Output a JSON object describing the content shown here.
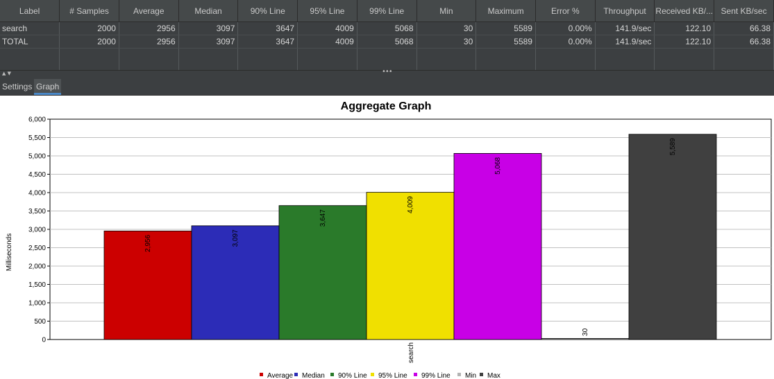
{
  "table": {
    "columns": [
      "Label",
      "# Samples",
      "Average",
      "Median",
      "90% Line",
      "95% Line",
      "99% Line",
      "Min",
      "Maximum",
      "Error %",
      "Throughput",
      "Received KB/...",
      "Sent KB/sec"
    ],
    "rows": [
      [
        "search",
        "2000",
        "2956",
        "3097",
        "3647",
        "4009",
        "5068",
        "30",
        "5589",
        "0.00%",
        "141.9/sec",
        "122.10",
        "66.38"
      ],
      [
        "TOTAL",
        "2000",
        "2956",
        "3097",
        "3647",
        "4009",
        "5068",
        "30",
        "5589",
        "0.00%",
        "141.9/sec",
        "122.10",
        "66.38"
      ]
    ]
  },
  "tabs": {
    "settings": "Settings",
    "graph": "Graph"
  },
  "chart_data": {
    "type": "bar",
    "title": "Aggregate Graph",
    "ylabel": "Milliseconds",
    "categories": [
      "search"
    ],
    "ylim": [
      0,
      6000
    ],
    "yticks": [
      "0",
      "500",
      "1,000",
      "1,500",
      "2,000",
      "2,500",
      "3,000",
      "3,500",
      "4,000",
      "4,500",
      "5,000",
      "5,500",
      "6,000"
    ],
    "ytick_values": [
      0,
      500,
      1000,
      1500,
      2000,
      2500,
      3000,
      3500,
      4000,
      4500,
      5000,
      5500,
      6000
    ],
    "grid": true,
    "legend_position": "bottom",
    "series": [
      {
        "name": "Average",
        "values": [
          2956
        ],
        "label": "2,956",
        "color": "#cc0000"
      },
      {
        "name": "Median",
        "values": [
          3097
        ],
        "label": "3,097",
        "color": "#2c2cb7"
      },
      {
        "name": "90% Line",
        "values": [
          3647
        ],
        "label": "3,647",
        "color": "#2a7a2a"
      },
      {
        "name": "95% Line",
        "values": [
          4009
        ],
        "label": "4,009",
        "color": "#f0e000"
      },
      {
        "name": "99% Line",
        "values": [
          5068
        ],
        "label": "5,068",
        "color": "#c800e6"
      },
      {
        "name": "Min",
        "values": [
          30
        ],
        "label": "30",
        "color": "#b4b4b4"
      },
      {
        "name": "Max",
        "values": [
          5589
        ],
        "label": "5,589",
        "color": "#404040"
      }
    ]
  }
}
